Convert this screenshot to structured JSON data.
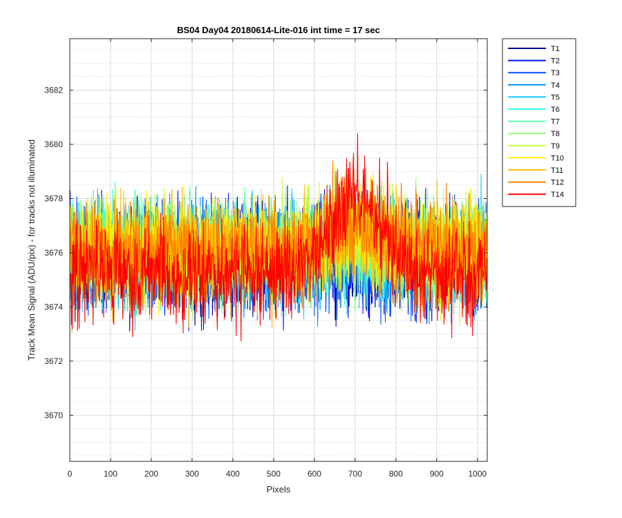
{
  "chart_data": {
    "type": "line",
    "title": "BS04 Day04 20180614-Lite-016 int time = 17 sec",
    "xlabel": "Pixels",
    "ylabel": "Track Mean Signal (ADU/pix) - for tracks not illuminated",
    "xlim": [
      0,
      1024
    ],
    "ylim": [
      3668.3,
      3683.9
    ],
    "xticks": [
      0,
      100,
      200,
      300,
      400,
      500,
      600,
      700,
      800,
      900,
      1000
    ],
    "yticks": [
      3670,
      3672,
      3674,
      3676,
      3678,
      3680,
      3682
    ],
    "grid": true,
    "minor_grid": true,
    "legend_position": "outside-top-right",
    "series": [
      {
        "name": "T1",
        "color": "#00008f",
        "baseline": 3675.8,
        "noise": 1.25,
        "bump": 0.0
      },
      {
        "name": "T2",
        "color": "#0010ff",
        "baseline": 3675.9,
        "noise": 1.25,
        "bump": 0.0
      },
      {
        "name": "T3",
        "color": "#0050ff",
        "baseline": 3675.8,
        "noise": 1.2,
        "bump": 0.1
      },
      {
        "name": "T4",
        "color": "#0090ff",
        "baseline": 3675.9,
        "noise": 1.2,
        "bump": 0.2
      },
      {
        "name": "T5",
        "color": "#10cfff",
        "baseline": 3675.9,
        "noise": 1.2,
        "bump": 0.2
      },
      {
        "name": "T6",
        "color": "#30ffe0",
        "baseline": 3676.0,
        "noise": 1.15,
        "bump": 0.3
      },
      {
        "name": "T7",
        "color": "#60ffb0",
        "baseline": 3676.0,
        "noise": 1.15,
        "bump": 0.3
      },
      {
        "name": "T8",
        "color": "#90ff70",
        "baseline": 3676.1,
        "noise": 1.15,
        "bump": 0.4
      },
      {
        "name": "T9",
        "color": "#c0ff40",
        "baseline": 3676.1,
        "noise": 1.15,
        "bump": 0.5
      },
      {
        "name": "T10",
        "color": "#ffef00",
        "baseline": 3676.1,
        "noise": 1.15,
        "bump": 0.6
      },
      {
        "name": "T11",
        "color": "#ffbf00",
        "baseline": 3676.1,
        "noise": 1.2,
        "bump": 0.8
      },
      {
        "name": "T12",
        "color": "#ff8000",
        "baseline": 3676.0,
        "noise": 1.2,
        "bump": 1.2
      },
      {
        "name": "T14",
        "color": "#ff0000",
        "baseline": 3675.2,
        "noise": 1.15,
        "bump": 3.0
      }
    ]
  }
}
